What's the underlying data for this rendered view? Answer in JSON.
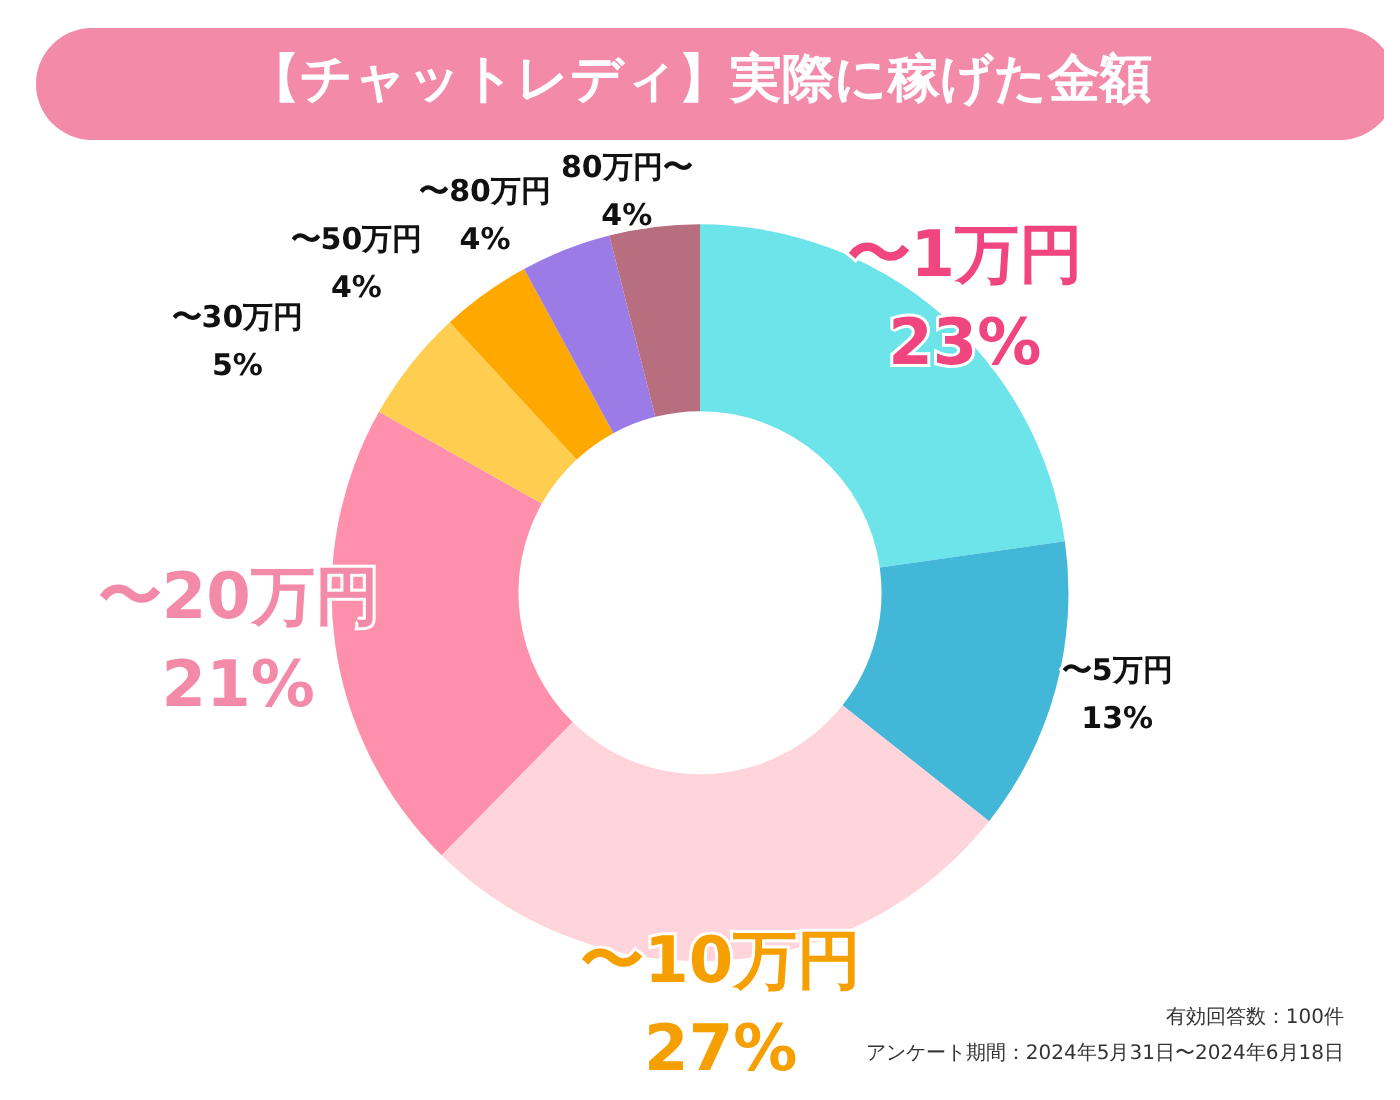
{
  "chart_data": {
    "type": "donut",
    "title": "【チャットレディ】実際に稼げた金額",
    "categories": [
      "〜1万円",
      "〜5万円",
      "〜10万円",
      "〜20万円",
      "〜30万円",
      "〜50万円",
      "〜80万円",
      "80万円〜"
    ],
    "values": [
      23,
      13,
      27,
      21,
      5,
      4,
      4,
      4
    ],
    "value_labels": [
      "23%",
      "13%",
      "27%",
      "21%",
      "5%",
      "4%",
      "4%",
      "4%"
    ],
    "colors": [
      "#6ce4e9",
      "#42b7d7",
      "#ffd4db",
      "#ff90ab",
      "#ffcd4f",
      "#ffa800",
      "#9b7ce6",
      "#b76f80"
    ],
    "data_labels": true,
    "legend": false,
    "annotations": [
      "有効回答数：100件",
      "アンケート期間：2024年5月31日〜2024年6月18日"
    ]
  }
}
